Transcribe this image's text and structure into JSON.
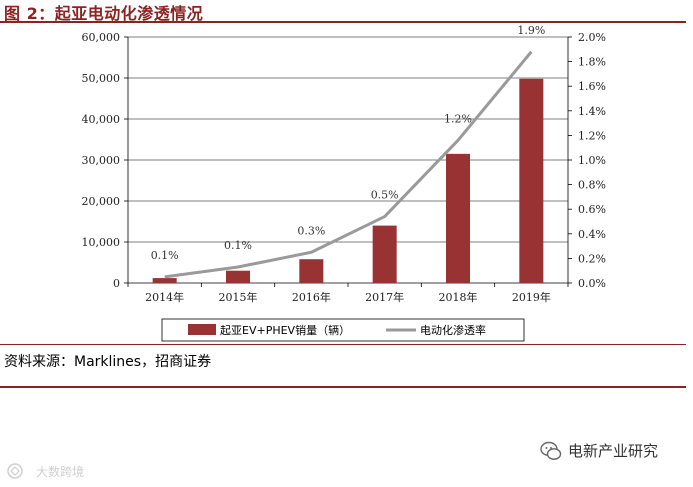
{
  "figure_title": "图 2：起亚电动化渗透情况",
  "source_text": "资料来源：Marklines，招商证券",
  "watermark_right": "电新产业研究",
  "watermark_left": "大数跨境",
  "colors": {
    "accent": "#8b2323",
    "bar": "#993333",
    "line": "#9a9a9a"
  },
  "icons": {
    "watermark_right": "wechat-icon",
    "watermark_left": "brand-logo-icon"
  },
  "chart_data": {
    "type": "bar",
    "categories": [
      "2014年",
      "2015年",
      "2016年",
      "2017年",
      "2018年",
      "2019年"
    ],
    "series": [
      {
        "name": "起亚EV+PHEV销量（辆）",
        "type": "bar",
        "axis": "left",
        "values": [
          1200,
          3000,
          5800,
          14000,
          31500,
          49800
        ]
      },
      {
        "name": "电动化渗透率",
        "type": "line",
        "axis": "right",
        "values": [
          0.05,
          0.13,
          0.25,
          0.54,
          1.16,
          1.88
        ],
        "data_labels": [
          "0.1%",
          "0.1%",
          "0.3%",
          "0.5%",
          "1.2%",
          "1.9%"
        ]
      }
    ],
    "y_left": {
      "lim": [
        0,
        60000
      ],
      "ticks": [
        "0",
        "10,000",
        "20,000",
        "30,000",
        "40,000",
        "50,000",
        "60,000"
      ]
    },
    "y_right": {
      "lim": [
        0,
        2.0
      ],
      "ticks": [
        "0.0%",
        "0.2%",
        "0.4%",
        "0.6%",
        "0.8%",
        "1.0%",
        "1.2%",
        "1.4%",
        "1.6%",
        "1.8%",
        "2.0%"
      ]
    },
    "gridlines": true,
    "legend_position": "bottom"
  }
}
